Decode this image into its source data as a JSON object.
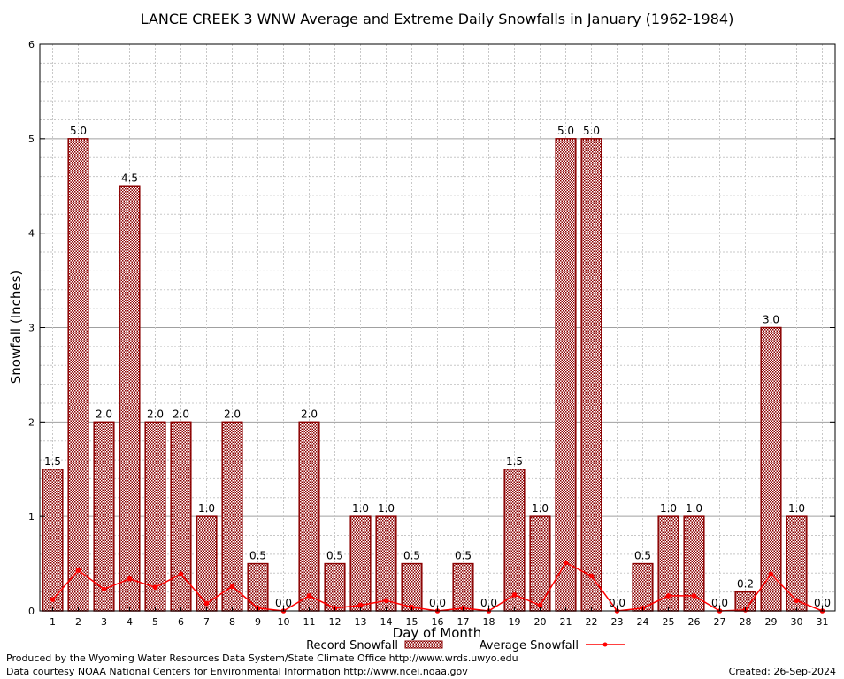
{
  "chart_data": {
    "type": "bar",
    "title": "LANCE CREEK 3 WNW Average and Extreme Daily Snowfalls in January (1962-1984)",
    "xlabel": "Day of Month",
    "ylabel": "Snowfall (Inches)",
    "ylim": [
      0,
      6
    ],
    "yticks": [
      "0",
      "1",
      "2",
      "3",
      "4",
      "5",
      "6"
    ],
    "grid": true,
    "legend_position": "bottom",
    "categories": [
      "1",
      "2",
      "3",
      "4",
      "5",
      "6",
      "7",
      "8",
      "9",
      "10",
      "11",
      "12",
      "13",
      "14",
      "15",
      "16",
      "17",
      "18",
      "19",
      "20",
      "21",
      "22",
      "23",
      "24",
      "25",
      "26",
      "27",
      "28",
      "29",
      "30",
      "31"
    ],
    "series": [
      {
        "name": "Record Snowfall",
        "type": "bar",
        "color": "#8b0000",
        "values": [
          1.5,
          5.0,
          2.0,
          4.5,
          2.0,
          2.0,
          1.0,
          2.0,
          0.5,
          0.0,
          2.0,
          0.5,
          1.0,
          1.0,
          0.5,
          0.0,
          0.5,
          0.0,
          1.5,
          1.0,
          5.0,
          5.0,
          0.0,
          0.5,
          1.0,
          1.0,
          0.0,
          0.2,
          3.0,
          1.0,
          0.0
        ],
        "labels": [
          "1.5",
          "5.0",
          "2.0",
          "4.5",
          "2.0",
          "2.0",
          "1.0",
          "2.0",
          "0.5",
          "0.0",
          "2.0",
          "0.5",
          "1.0",
          "1.0",
          "0.5",
          "0.0",
          "0.5",
          "0.0",
          "1.5",
          "1.0",
          "5.0",
          "5.0",
          "0.0",
          "0.5",
          "1.0",
          "1.0",
          "0.0",
          "0.2",
          "3.0",
          "1.0",
          "0.0"
        ]
      },
      {
        "name": "Average Snowfall",
        "type": "line",
        "color": "#ff0000",
        "values": [
          0.12,
          0.43,
          0.23,
          0.34,
          0.25,
          0.39,
          0.08,
          0.26,
          0.03,
          0.0,
          0.16,
          0.03,
          0.06,
          0.11,
          0.04,
          0.0,
          0.03,
          0.0,
          0.17,
          0.06,
          0.51,
          0.37,
          0.0,
          0.03,
          0.16,
          0.16,
          0.0,
          0.01,
          0.39,
          0.11,
          0.0
        ]
      }
    ]
  },
  "footer": {
    "line1": "Produced by the Wyoming Water Resources Data System/State Climate Office http://www.wrds.uwyo.edu",
    "line2": "Data courtesy NOAA National Centers for Environmental Information http://www.ncei.noaa.gov",
    "created": "Created: 26-Sep-2024"
  }
}
